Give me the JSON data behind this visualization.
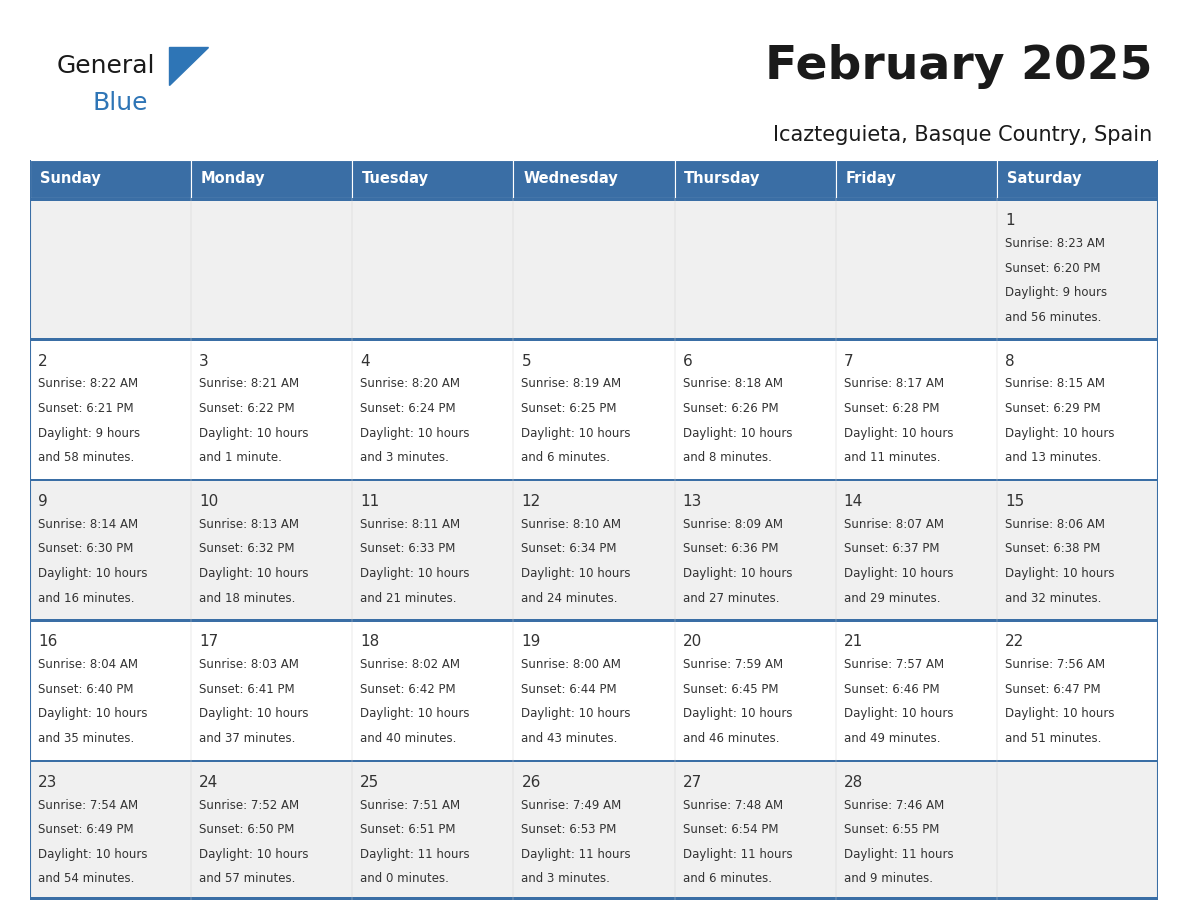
{
  "title": "February 2025",
  "subtitle": "Icazteguieta, Basque Country, Spain",
  "header_bg": "#3a6ea5",
  "header_text": "#ffffff",
  "row_bg_odd": "#f0f0f0",
  "row_bg_even": "#ffffff",
  "border_color": "#3a6ea5",
  "text_color": "#333333",
  "days_of_week": [
    "Sunday",
    "Monday",
    "Tuesday",
    "Wednesday",
    "Thursday",
    "Friday",
    "Saturday"
  ],
  "weeks": [
    [
      {
        "day": "",
        "sunrise": "",
        "sunset": "",
        "daylight": ""
      },
      {
        "day": "",
        "sunrise": "",
        "sunset": "",
        "daylight": ""
      },
      {
        "day": "",
        "sunrise": "",
        "sunset": "",
        "daylight": ""
      },
      {
        "day": "",
        "sunrise": "",
        "sunset": "",
        "daylight": ""
      },
      {
        "day": "",
        "sunrise": "",
        "sunset": "",
        "daylight": ""
      },
      {
        "day": "",
        "sunrise": "",
        "sunset": "",
        "daylight": ""
      },
      {
        "day": "1",
        "sunrise": "8:23 AM",
        "sunset": "6:20 PM",
        "daylight": "9 hours\nand 56 minutes."
      }
    ],
    [
      {
        "day": "2",
        "sunrise": "8:22 AM",
        "sunset": "6:21 PM",
        "daylight": "9 hours\nand 58 minutes."
      },
      {
        "day": "3",
        "sunrise": "8:21 AM",
        "sunset": "6:22 PM",
        "daylight": "10 hours\nand 1 minute."
      },
      {
        "day": "4",
        "sunrise": "8:20 AM",
        "sunset": "6:24 PM",
        "daylight": "10 hours\nand 3 minutes."
      },
      {
        "day": "5",
        "sunrise": "8:19 AM",
        "sunset": "6:25 PM",
        "daylight": "10 hours\nand 6 minutes."
      },
      {
        "day": "6",
        "sunrise": "8:18 AM",
        "sunset": "6:26 PM",
        "daylight": "10 hours\nand 8 minutes."
      },
      {
        "day": "7",
        "sunrise": "8:17 AM",
        "sunset": "6:28 PM",
        "daylight": "10 hours\nand 11 minutes."
      },
      {
        "day": "8",
        "sunrise": "8:15 AM",
        "sunset": "6:29 PM",
        "daylight": "10 hours\nand 13 minutes."
      }
    ],
    [
      {
        "day": "9",
        "sunrise": "8:14 AM",
        "sunset": "6:30 PM",
        "daylight": "10 hours\nand 16 minutes."
      },
      {
        "day": "10",
        "sunrise": "8:13 AM",
        "sunset": "6:32 PM",
        "daylight": "10 hours\nand 18 minutes."
      },
      {
        "day": "11",
        "sunrise": "8:11 AM",
        "sunset": "6:33 PM",
        "daylight": "10 hours\nand 21 minutes."
      },
      {
        "day": "12",
        "sunrise": "8:10 AM",
        "sunset": "6:34 PM",
        "daylight": "10 hours\nand 24 minutes."
      },
      {
        "day": "13",
        "sunrise": "8:09 AM",
        "sunset": "6:36 PM",
        "daylight": "10 hours\nand 27 minutes."
      },
      {
        "day": "14",
        "sunrise": "8:07 AM",
        "sunset": "6:37 PM",
        "daylight": "10 hours\nand 29 minutes."
      },
      {
        "day": "15",
        "sunrise": "8:06 AM",
        "sunset": "6:38 PM",
        "daylight": "10 hours\nand 32 minutes."
      }
    ],
    [
      {
        "day": "16",
        "sunrise": "8:04 AM",
        "sunset": "6:40 PM",
        "daylight": "10 hours\nand 35 minutes."
      },
      {
        "day": "17",
        "sunrise": "8:03 AM",
        "sunset": "6:41 PM",
        "daylight": "10 hours\nand 37 minutes."
      },
      {
        "day": "18",
        "sunrise": "8:02 AM",
        "sunset": "6:42 PM",
        "daylight": "10 hours\nand 40 minutes."
      },
      {
        "day": "19",
        "sunrise": "8:00 AM",
        "sunset": "6:44 PM",
        "daylight": "10 hours\nand 43 minutes."
      },
      {
        "day": "20",
        "sunrise": "7:59 AM",
        "sunset": "6:45 PM",
        "daylight": "10 hours\nand 46 minutes."
      },
      {
        "day": "21",
        "sunrise": "7:57 AM",
        "sunset": "6:46 PM",
        "daylight": "10 hours\nand 49 minutes."
      },
      {
        "day": "22",
        "sunrise": "7:56 AM",
        "sunset": "6:47 PM",
        "daylight": "10 hours\nand 51 minutes."
      }
    ],
    [
      {
        "day": "23",
        "sunrise": "7:54 AM",
        "sunset": "6:49 PM",
        "daylight": "10 hours\nand 54 minutes."
      },
      {
        "day": "24",
        "sunrise": "7:52 AM",
        "sunset": "6:50 PM",
        "daylight": "10 hours\nand 57 minutes."
      },
      {
        "day": "25",
        "sunrise": "7:51 AM",
        "sunset": "6:51 PM",
        "daylight": "11 hours\nand 0 minutes."
      },
      {
        "day": "26",
        "sunrise": "7:49 AM",
        "sunset": "6:53 PM",
        "daylight": "11 hours\nand 3 minutes."
      },
      {
        "day": "27",
        "sunrise": "7:48 AM",
        "sunset": "6:54 PM",
        "daylight": "11 hours\nand 6 minutes."
      },
      {
        "day": "28",
        "sunrise": "7:46 AM",
        "sunset": "6:55 PM",
        "daylight": "11 hours\nand 9 minutes."
      },
      {
        "day": "",
        "sunrise": "",
        "sunset": "",
        "daylight": ""
      }
    ]
  ],
  "logo_general_color": "#1a1a1a",
  "logo_blue_color": "#2e75b6",
  "logo_triangle_color": "#2e75b6"
}
